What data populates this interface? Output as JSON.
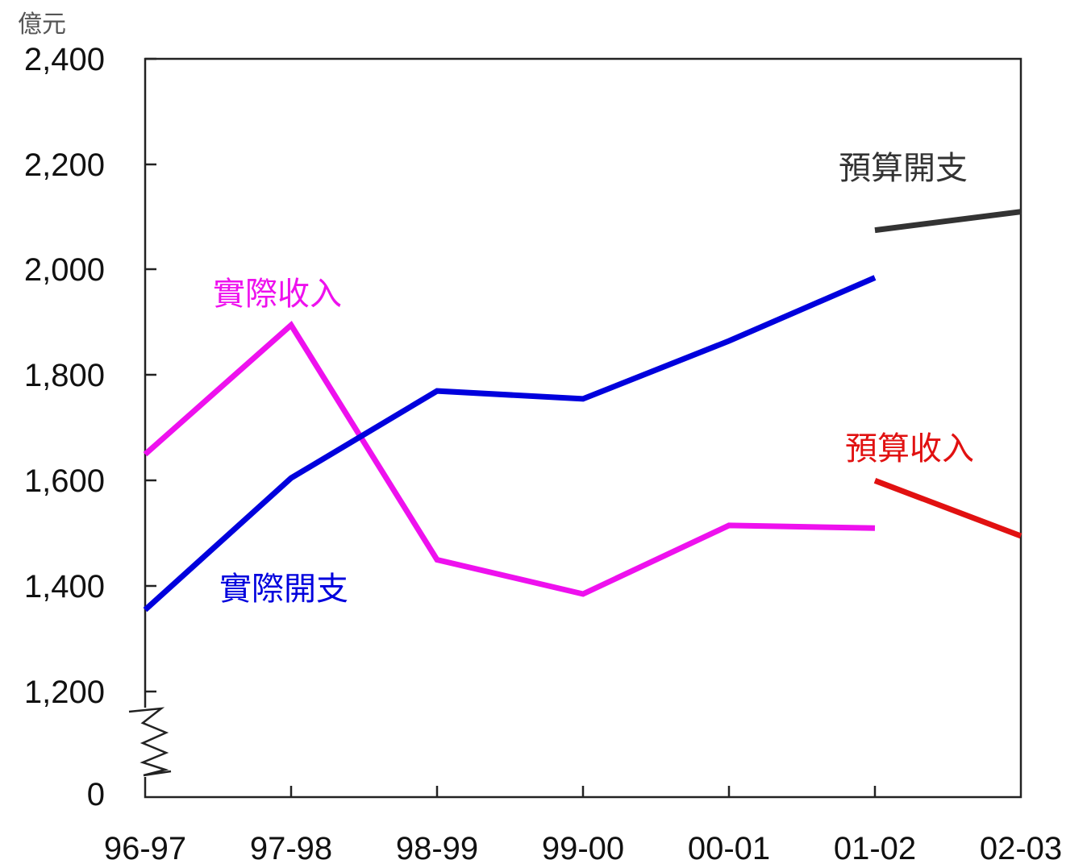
{
  "chart_data": {
    "type": "line",
    "title": "",
    "xlabel": "",
    "ylabel": "",
    "y_unit": "億元",
    "categories": [
      "96-97",
      "97-98",
      "98-99",
      "99-00",
      "00-01",
      "01-02",
      "02-03"
    ],
    "y_ticks": [
      "2,400",
      "2,200",
      "2,000",
      "1,800",
      "1,600",
      "1,400",
      "1,200",
      "0"
    ],
    "y_axis_break": true,
    "ylim": [
      1200,
      2400
    ],
    "grid": false,
    "series": [
      {
        "name": "實際收入",
        "color": "#ee11ee",
        "values": [
          1650,
          1895,
          1450,
          1385,
          1515,
          1510,
          null
        ]
      },
      {
        "name": "實際開支",
        "color": "#0000dd",
        "values": [
          1355,
          1605,
          1770,
          1755,
          1865,
          1985,
          null
        ]
      },
      {
        "name": "預算開支",
        "color": "#333333",
        "values": [
          null,
          null,
          null,
          null,
          null,
          2075,
          2110
        ]
      },
      {
        "name": "預算收入",
        "color": "#e11111",
        "values": [
          null,
          null,
          null,
          null,
          null,
          1600,
          1495
        ]
      }
    ]
  }
}
